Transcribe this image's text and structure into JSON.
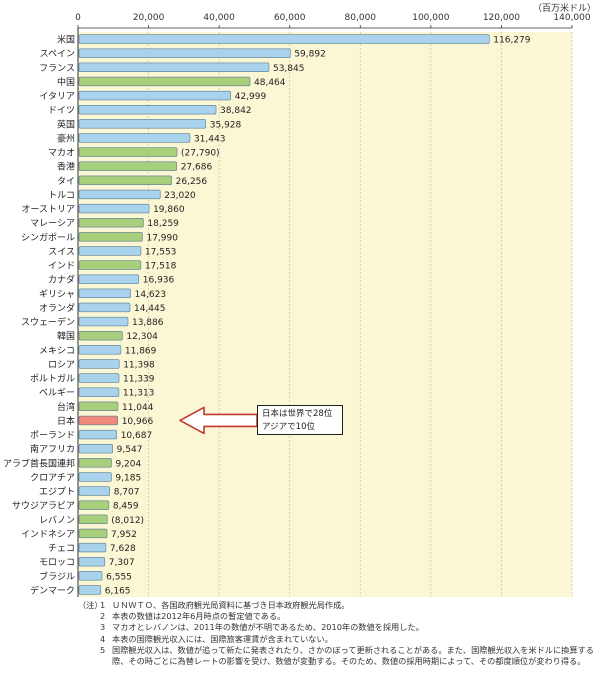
{
  "unit_label": "（百万米ドル）",
  "callout": {
    "line1": "日本は世界で28位",
    "line2": "アジアで10位"
  },
  "notes": {
    "head": "（注）",
    "items": [
      {
        "num": "1",
        "text": "ＵＮＷＴＯ、各国政府観光局資料に基づき日本政府観光局作成。"
      },
      {
        "num": "2",
        "text": "本表の数値は2012年6月時点の暫定値である。"
      },
      {
        "num": "3",
        "text": "マカオとレバノンは、2011年の数値が不明であるため、2010年の数値を採用した。"
      },
      {
        "num": "4",
        "text": "本表の国際観光収入には、国際旅客運賃が含まれていない。"
      },
      {
        "num": "5",
        "text": "国際観光収入は、数値が追って新たに発表されたり、さかのぼって更新されることがある。また、国際観光収入を米ドルに換算する際、その時ごとに為替レートの影響を受け、数値が変動する。そのため、数値の採用時期によって、その都度順位が変わり得る。"
      }
    ]
  },
  "chart_data": {
    "type": "bar",
    "orientation": "horizontal",
    "xlim": [
      0,
      140000
    ],
    "xticks": [
      0,
      20000,
      40000,
      60000,
      80000,
      100000,
      120000,
      140000
    ],
    "xtick_labels": [
      "0",
      "20,000",
      "40,000",
      "60,000",
      "80,000",
      "100,000",
      "120,000",
      "140,000"
    ],
    "colors": {
      "default": "#a9d3ec",
      "asia": "#a8cf7c",
      "japan": "#f08a7c",
      "plot_bg": "#fbf7d5",
      "grid": "#c8c6aa"
    },
    "categories": [
      "米国",
      "スペイン",
      "フランス",
      "中国",
      "イタリア",
      "ドイツ",
      "英国",
      "豪州",
      "マカオ",
      "香港",
      "タイ",
      "トルコ",
      "オーストリア",
      "マレーシア",
      "シンガポール",
      "スイス",
      "インド",
      "カナダ",
      "ギリシャ",
      "オランダ",
      "スウェーデン",
      "韓国",
      "メキシコ",
      "ロシア",
      "ポルトガル",
      "ベルギー",
      "台湾",
      "日本",
      "ポーランド",
      "南アフリカ",
      "アラブ首長国連邦",
      "クロアチア",
      "エジプト",
      "サウジアラビア",
      "レバノン",
      "インドネシア",
      "チェコ",
      "モロッコ",
      "ブラジル",
      "デンマーク"
    ],
    "values": [
      116279,
      59892,
      53845,
      48464,
      42999,
      38842,
      35928,
      31443,
      27790,
      27686,
      26256,
      23020,
      19860,
      18259,
      17990,
      17553,
      17518,
      16936,
      14623,
      14445,
      13886,
      12304,
      11869,
      11398,
      11339,
      11313,
      11044,
      10966,
      10687,
      9547,
      9204,
      9185,
      8707,
      8459,
      8012,
      7952,
      7628,
      7307,
      6555,
      6165
    ],
    "value_labels": [
      "116,279",
      "59,892",
      "53,845",
      "48,464",
      "42,999",
      "38,842",
      "35,928",
      "31,443",
      "(27,790)",
      "27,686",
      "26,256",
      "23,020",
      "19,860",
      "18,259",
      "17,990",
      "17,553",
      "17,518",
      "16,936",
      "14,623",
      "14,445",
      "13,886",
      "12,304",
      "11,869",
      "11,398",
      "11,339",
      "11,313",
      "11,044",
      "10,966",
      "10,687",
      "9,547",
      "9,204",
      "9,185",
      "8,707",
      "8,459",
      "(8,012)",
      "7,952",
      "7,628",
      "7,307",
      "6,555",
      "6,165"
    ],
    "group": [
      "d",
      "d",
      "d",
      "a",
      "d",
      "d",
      "d",
      "d",
      "a",
      "a",
      "a",
      "d",
      "d",
      "a",
      "a",
      "d",
      "a",
      "d",
      "d",
      "d",
      "d",
      "a",
      "d",
      "d",
      "d",
      "d",
      "a",
      "j",
      "d",
      "d",
      "a",
      "d",
      "d",
      "a",
      "a",
      "a",
      "d",
      "d",
      "d",
      "d"
    ],
    "grid": true
  }
}
